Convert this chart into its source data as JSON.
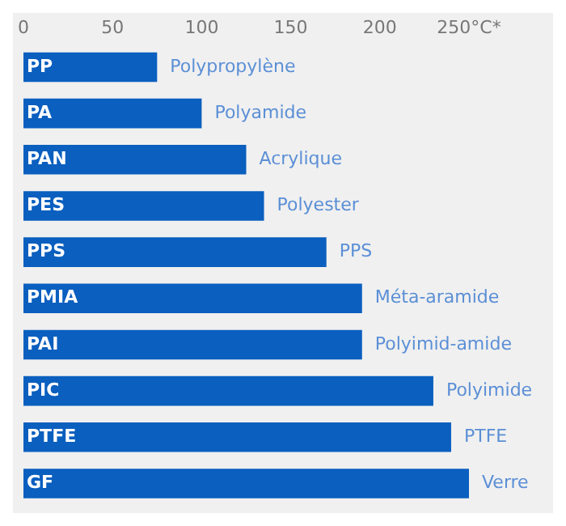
{
  "chart_data": {
    "type": "bar",
    "orientation": "horizontal",
    "categories": [
      "PP",
      "PA",
      "PAN",
      "PES",
      "PPS",
      "PMIA",
      "PAI",
      "PIC",
      "PTFE",
      "GF"
    ],
    "values": [
      75,
      100,
      125,
      135,
      170,
      190,
      190,
      230,
      240,
      250
    ],
    "color": "#0a5fbf",
    "xlim": [
      0,
      250
    ],
    "xticks": [
      0,
      50,
      100,
      150,
      200,
      {
        "value": 250,
        "label": "250°C*"
      }
    ],
    "grid": false,
    "annotations": [
      {
        "text": "Polypropylène",
        "x": 75,
        "y": "PP"
      },
      {
        "text": "Polyamide",
        "x": 100,
        "y": "PA"
      },
      {
        "text": "Acrylique",
        "x": 125,
        "y": "PAN"
      },
      {
        "text": "Polyester",
        "x": 135,
        "y": "PES"
      },
      {
        "text": "PPS",
        "x": 170,
        "y": "PPS"
      },
      {
        "text": "Méta-aramide",
        "x": 190,
        "y": "PMIA"
      },
      {
        "text": "Polyimid-amide",
        "x": 190,
        "y": "PAI"
      },
      {
        "text": "Polyimide",
        "x": 230,
        "y": "PIC"
      },
      {
        "text": "PTFE",
        "x": 240,
        "y": "PTFE"
      },
      {
        "text": "Verre",
        "x": 250,
        "y": "GF"
      }
    ]
  }
}
